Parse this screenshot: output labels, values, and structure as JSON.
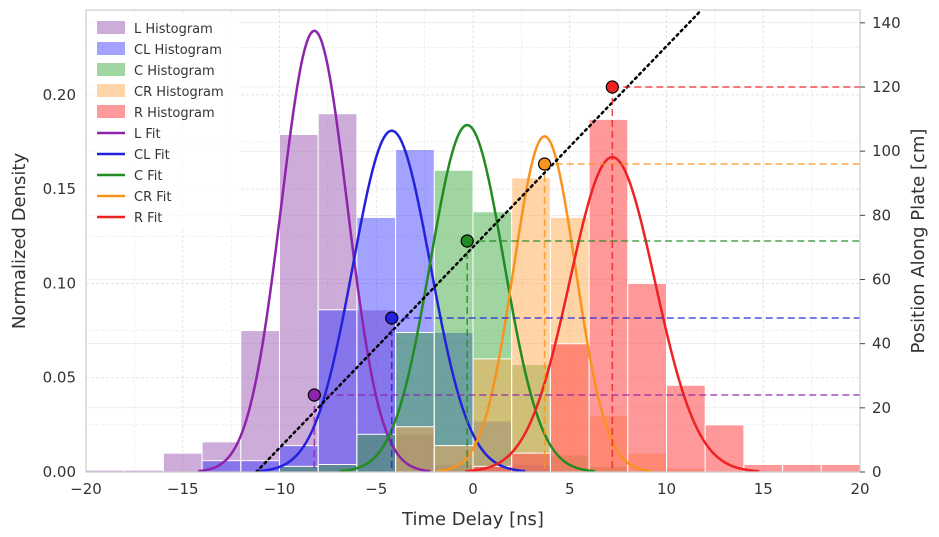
{
  "chart_data": {
    "type": "histogram-with-fit",
    "title": "",
    "xlabel": "Time Delay [ns]",
    "ylabel": "Normalized Density",
    "y2label": "Position Along Plate [cm]",
    "xlim": [
      -20,
      20
    ],
    "ylim": [
      0,
      0.245
    ],
    "y2lim": [
      0,
      144
    ],
    "x_ticks": [
      -20,
      -15,
      -10,
      -5,
      0,
      5,
      10,
      15,
      20
    ],
    "x_tick_labels": [
      "−20",
      "−15",
      "−10",
      "−5",
      "0",
      "5",
      "10",
      "15",
      "20"
    ],
    "y_ticks": [
      0.0,
      0.05,
      0.1,
      0.15,
      0.2
    ],
    "y_tick_labels": [
      "0.00",
      "0.05",
      "0.10",
      "0.15",
      "0.20"
    ],
    "y2_ticks": [
      0,
      20,
      40,
      60,
      80,
      100,
      120,
      140
    ],
    "y2_tick_labels": [
      "0",
      "20",
      "40",
      "60",
      "80",
      "100",
      "120",
      "140"
    ],
    "grid": true,
    "legend_position": "top-left",
    "histograms": [
      {
        "name": "L Histogram",
        "color": "#9b59b6",
        "opacity": 0.5,
        "bins": [
          {
            "x0": -20,
            "x1": -18,
            "y": 0.001
          },
          {
            "x0": -18,
            "x1": -16,
            "y": 0.001
          },
          {
            "x0": -16,
            "x1": -14,
            "y": 0.01
          },
          {
            "x0": -14,
            "x1": -12,
            "y": 0.016
          },
          {
            "x0": -12,
            "x1": -10,
            "y": 0.075
          },
          {
            "x0": -10,
            "x1": -8,
            "y": 0.179
          },
          {
            "x0": -8,
            "x1": -6,
            "y": 0.19
          },
          {
            "x0": -6,
            "x1": -4,
            "y": 0.086
          },
          {
            "x0": -4,
            "x1": -2,
            "y": 0.02
          },
          {
            "x0": -2,
            "x1": 0,
            "y": 0.004
          }
        ]
      },
      {
        "name": "CL Histogram",
        "color": "#3333ff",
        "opacity": 0.45,
        "bins": [
          {
            "x0": -14,
            "x1": -12,
            "y": 0.006
          },
          {
            "x0": -12,
            "x1": -10,
            "y": 0.006
          },
          {
            "x0": -10,
            "x1": -8,
            "y": 0.014
          },
          {
            "x0": -8,
            "x1": -6,
            "y": 0.086
          },
          {
            "x0": -6,
            "x1": -4,
            "y": 0.135
          },
          {
            "x0": -4,
            "x1": -2,
            "y": 0.171
          },
          {
            "x0": -2,
            "x1": 0,
            "y": 0.074
          },
          {
            "x0": 0,
            "x1": 2,
            "y": 0.027
          },
          {
            "x0": 2,
            "x1": 4,
            "y": 0.004
          }
        ]
      },
      {
        "name": "C Histogram",
        "color": "#2ca02c",
        "opacity": 0.45,
        "bins": [
          {
            "x0": -10,
            "x1": -8,
            "y": 0.003
          },
          {
            "x0": -8,
            "x1": -6,
            "y": 0.004
          },
          {
            "x0": -6,
            "x1": -4,
            "y": 0.02
          },
          {
            "x0": -4,
            "x1": -2,
            "y": 0.074
          },
          {
            "x0": -2,
            "x1": 0,
            "y": 0.16
          },
          {
            "x0": 0,
            "x1": 2,
            "y": 0.138
          },
          {
            "x0": 2,
            "x1": 4,
            "y": 0.057
          },
          {
            "x0": 4,
            "x1": 6,
            "y": 0.009
          },
          {
            "x0": 6,
            "x1": 8,
            "y": 0.003
          }
        ]
      },
      {
        "name": "CR Histogram",
        "color": "#ffa94d",
        "opacity": 0.5,
        "bins": [
          {
            "x0": -4,
            "x1": -2,
            "y": 0.024
          },
          {
            "x0": -2,
            "x1": 0,
            "y": 0.014
          },
          {
            "x0": 0,
            "x1": 2,
            "y": 0.06
          },
          {
            "x0": 2,
            "x1": 4,
            "y": 0.156
          },
          {
            "x0": 4,
            "x1": 6,
            "y": 0.135
          },
          {
            "x0": 6,
            "x1": 8,
            "y": 0.03
          },
          {
            "x0": 8,
            "x1": 10,
            "y": 0.01
          },
          {
            "x0": 10,
            "x1": 12,
            "y": 0.002
          }
        ]
      },
      {
        "name": "R Histogram",
        "color": "#ff5555",
        "opacity": 0.6,
        "bins": [
          {
            "x0": 0,
            "x1": 2,
            "y": 0.003
          },
          {
            "x0": 2,
            "x1": 4,
            "y": 0.01
          },
          {
            "x0": 4,
            "x1": 6,
            "y": 0.068
          },
          {
            "x0": 6,
            "x1": 8,
            "y": 0.187
          },
          {
            "x0": 8,
            "x1": 10,
            "y": 0.1
          },
          {
            "x0": 10,
            "x1": 12,
            "y": 0.046
          },
          {
            "x0": 12,
            "x1": 14,
            "y": 0.025
          },
          {
            "x0": 14,
            "x1": 16,
            "y": 0.004
          },
          {
            "x0": 16,
            "x1": 18,
            "y": 0.004
          },
          {
            "x0": 18,
            "x1": 20,
            "y": 0.004
          }
        ]
      }
    ],
    "fits": [
      {
        "name": "L Fit",
        "color": "#8e24aa",
        "mu": -8.2,
        "sigma": 1.7,
        "peak": 0.234,
        "position_cm": 24
      },
      {
        "name": "CL Fit",
        "color": "#2222dd",
        "mu": -4.2,
        "sigma": 2.0,
        "peak": 0.181,
        "position_cm": 48
      },
      {
        "name": "C Fit",
        "color": "#228b22",
        "mu": -0.3,
        "sigma": 1.9,
        "peak": 0.184,
        "position_cm": 72
      },
      {
        "name": "CR Fit",
        "color": "#f7931e",
        "mu": 3.7,
        "sigma": 1.6,
        "peak": 0.178,
        "position_cm": 96
      },
      {
        "name": "R Fit",
        "color": "#ee2222",
        "mu": 7.2,
        "sigma": 2.2,
        "peak": 0.167,
        "position_cm": 120
      }
    ],
    "linear_fit_line": {
      "style": "dotted",
      "color": "#000000",
      "x0": -11.2,
      "y0_cm": 0,
      "slope_cm_per_ns": 6.26
    }
  }
}
